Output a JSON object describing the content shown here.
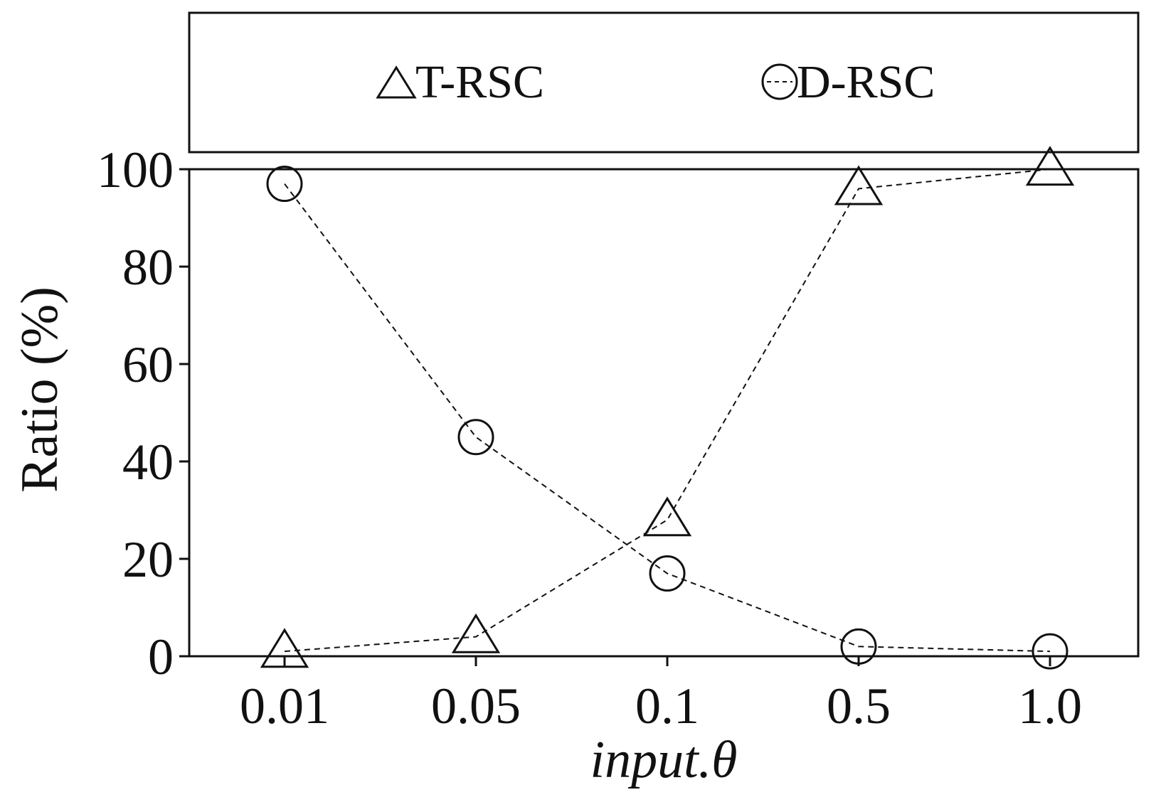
{
  "chart_data": {
    "type": "line",
    "categories": [
      "0.01",
      "0.05",
      "0.1",
      "0.5",
      "1.0"
    ],
    "series": [
      {
        "name": "T-RSC",
        "marker": "triangle",
        "values": [
          1,
          4,
          28,
          96,
          100
        ]
      },
      {
        "name": "D-RSC",
        "marker": "circle",
        "values": [
          97,
          45,
          17,
          2,
          1
        ]
      }
    ],
    "xlabel": "input.θ",
    "ylabel": "Ratio (%)",
    "ylim": [
      0,
      100
    ],
    "yticks": [
      "0",
      "20",
      "40",
      "60",
      "80",
      "100"
    ],
    "grid": false,
    "line_style": "dashed",
    "legend_position": "top"
  },
  "colors": {
    "ink": "#111111",
    "background": "#ffffff"
  }
}
